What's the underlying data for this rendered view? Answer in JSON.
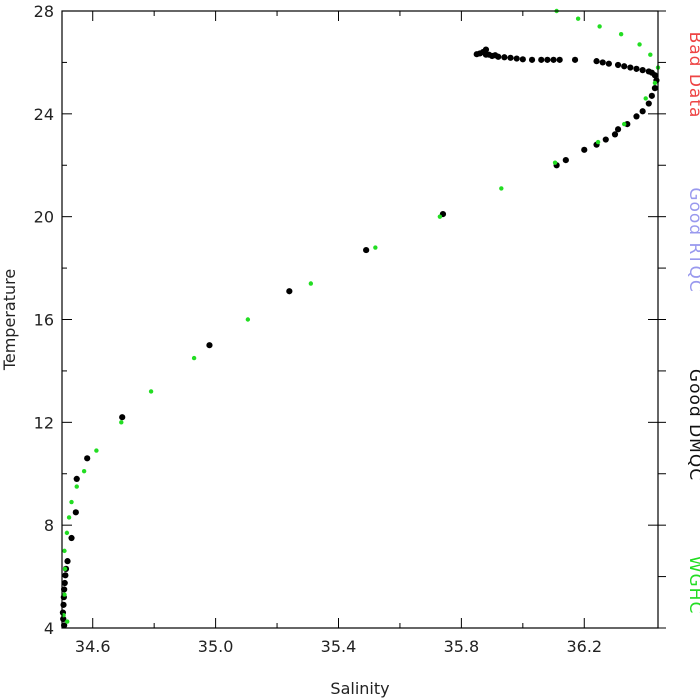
{
  "chart_data": {
    "type": "scatter",
    "title": "",
    "xlabel": "Salinity",
    "ylabel": "Temperature",
    "xlim": [
      34.5,
      36.44
    ],
    "ylim": [
      4,
      28
    ],
    "x_ticks": [
      34.6,
      35.0,
      35.4,
      35.8,
      36.2
    ],
    "x_tick_labels": [
      "34.6",
      "35.0",
      "35.4",
      "35.8",
      "36.2"
    ],
    "y_ticks": [
      4,
      8,
      12,
      16,
      20,
      24,
      28
    ],
    "y_tick_labels": [
      "4",
      "8",
      "12",
      "16",
      "20",
      "24",
      "28"
    ],
    "y_minor_ticks": [
      6,
      10,
      14,
      18,
      22,
      26
    ],
    "x_minor_ticks": [
      34.8,
      35.2,
      35.6,
      36.0
    ],
    "grid": false,
    "legend_position": "right, vertical",
    "legend": [
      {
        "label": "Bad Data",
        "color": "#ee4444"
      },
      {
        "label": "Good RTQC",
        "color": "#9999ee"
      },
      {
        "label": "Good DMQC",
        "color": "#111111"
      },
      {
        "label": "WGHC",
        "color": "#22dd22"
      }
    ],
    "series": [
      {
        "name": "Good DMQC",
        "color": "#000000",
        "points": [
          [
            34.507,
            4.1
          ],
          [
            34.504,
            4.35
          ],
          [
            34.503,
            4.6
          ],
          [
            34.505,
            4.9
          ],
          [
            34.506,
            5.2
          ],
          [
            34.507,
            5.5
          ],
          [
            34.509,
            5.75
          ],
          [
            34.511,
            6.05
          ],
          [
            34.513,
            6.3
          ],
          [
            34.518,
            6.6
          ],
          [
            34.531,
            7.5
          ],
          [
            34.545,
            8.5
          ],
          [
            34.548,
            9.8
          ],
          [
            34.582,
            10.6
          ],
          [
            34.696,
            12.2
          ],
          [
            34.98,
            15.0
          ],
          [
            35.24,
            17.1
          ],
          [
            35.49,
            18.7
          ],
          [
            35.74,
            20.1
          ],
          [
            36.11,
            22.0
          ],
          [
            36.14,
            22.2
          ],
          [
            36.2,
            22.6
          ],
          [
            36.24,
            22.8
          ],
          [
            36.27,
            23.0
          ],
          [
            36.3,
            23.2
          ],
          [
            36.31,
            23.4
          ],
          [
            36.34,
            23.6
          ],
          [
            36.37,
            23.9
          ],
          [
            36.39,
            24.1
          ],
          [
            36.41,
            24.4
          ],
          [
            36.42,
            24.7
          ],
          [
            36.43,
            25.0
          ],
          [
            36.435,
            25.3
          ],
          [
            36.43,
            25.5
          ],
          [
            36.42,
            25.6
          ],
          [
            36.41,
            25.65
          ],
          [
            36.39,
            25.7
          ],
          [
            36.37,
            25.75
          ],
          [
            36.35,
            25.8
          ],
          [
            36.33,
            25.85
          ],
          [
            36.31,
            25.9
          ],
          [
            36.28,
            25.95
          ],
          [
            36.26,
            26.0
          ],
          [
            36.24,
            26.05
          ],
          [
            36.17,
            26.1
          ],
          [
            36.12,
            26.1
          ],
          [
            36.1,
            26.1
          ],
          [
            36.08,
            26.1
          ],
          [
            36.06,
            26.1
          ],
          [
            36.03,
            26.1
          ],
          [
            36.0,
            26.12
          ],
          [
            35.98,
            26.15
          ],
          [
            35.96,
            26.18
          ],
          [
            35.94,
            26.2
          ],
          [
            35.92,
            26.22
          ],
          [
            35.9,
            26.25
          ],
          [
            35.88,
            26.3
          ],
          [
            35.86,
            26.35
          ],
          [
            35.87,
            26.4
          ],
          [
            35.88,
            26.5
          ],
          [
            35.89,
            26.3
          ],
          [
            35.91,
            26.28
          ],
          [
            35.85,
            26.32
          ]
        ]
      },
      {
        "name": "WGHC",
        "color": "#22dd22",
        "points": [
          [
            34.517,
            4.25
          ],
          [
            34.505,
            4.5
          ],
          [
            34.508,
            5.3
          ],
          [
            34.51,
            6.3
          ],
          [
            34.508,
            7.0
          ],
          [
            34.516,
            7.7
          ],
          [
            34.523,
            8.3
          ],
          [
            34.531,
            8.9
          ],
          [
            34.548,
            9.5
          ],
          [
            34.572,
            10.1
          ],
          [
            34.612,
            10.9
          ],
          [
            34.693,
            12.0
          ],
          [
            34.79,
            13.2
          ],
          [
            34.93,
            14.5
          ],
          [
            35.105,
            16.0
          ],
          [
            35.31,
            17.4
          ],
          [
            35.52,
            18.8
          ],
          [
            35.73,
            20.0
          ],
          [
            35.93,
            21.1
          ],
          [
            36.105,
            22.1
          ],
          [
            36.245,
            22.9
          ],
          [
            36.33,
            23.6
          ],
          [
            36.4,
            24.6
          ],
          [
            36.43,
            25.2
          ],
          [
            36.44,
            25.8
          ],
          [
            36.415,
            26.3
          ],
          [
            36.38,
            26.7
          ],
          [
            36.32,
            27.1
          ],
          [
            36.25,
            27.4
          ],
          [
            36.18,
            27.7
          ],
          [
            36.11,
            28.0
          ]
        ]
      }
    ]
  }
}
